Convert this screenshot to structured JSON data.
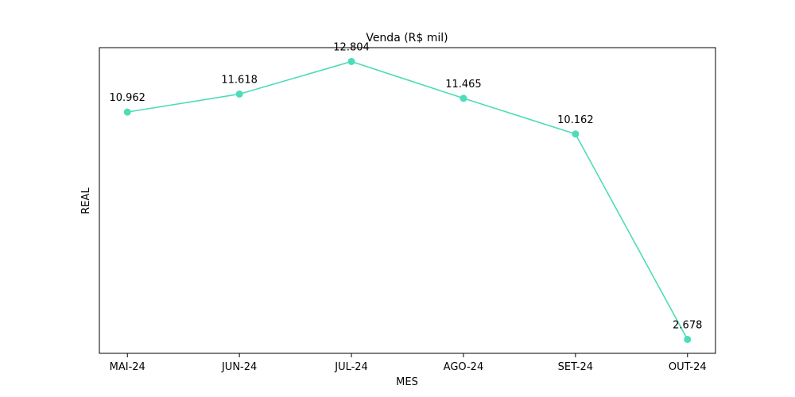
{
  "chart_data": {
    "type": "line",
    "title": "Venda (R$ mil)",
    "xlabel": "MES",
    "ylabel": "REAL",
    "categories": [
      "MAI-24",
      "JUN-24",
      "JUL-24",
      "AGO-24",
      "SET-24",
      "OUT-24"
    ],
    "series": [
      {
        "values": [
          10.962,
          11.618,
          12.804,
          11.465,
          10.162,
          2.678
        ],
        "data_labels": [
          "10.962",
          "11.618",
          "12.804",
          "11.465",
          "10.162",
          "2.678"
        ],
        "color": "#4ddcb8",
        "marker": "circle"
      }
    ],
    "ylim": [
      2.17,
      13.31
    ],
    "y_ticks_visible": false,
    "grid": false,
    "legend": "none"
  }
}
